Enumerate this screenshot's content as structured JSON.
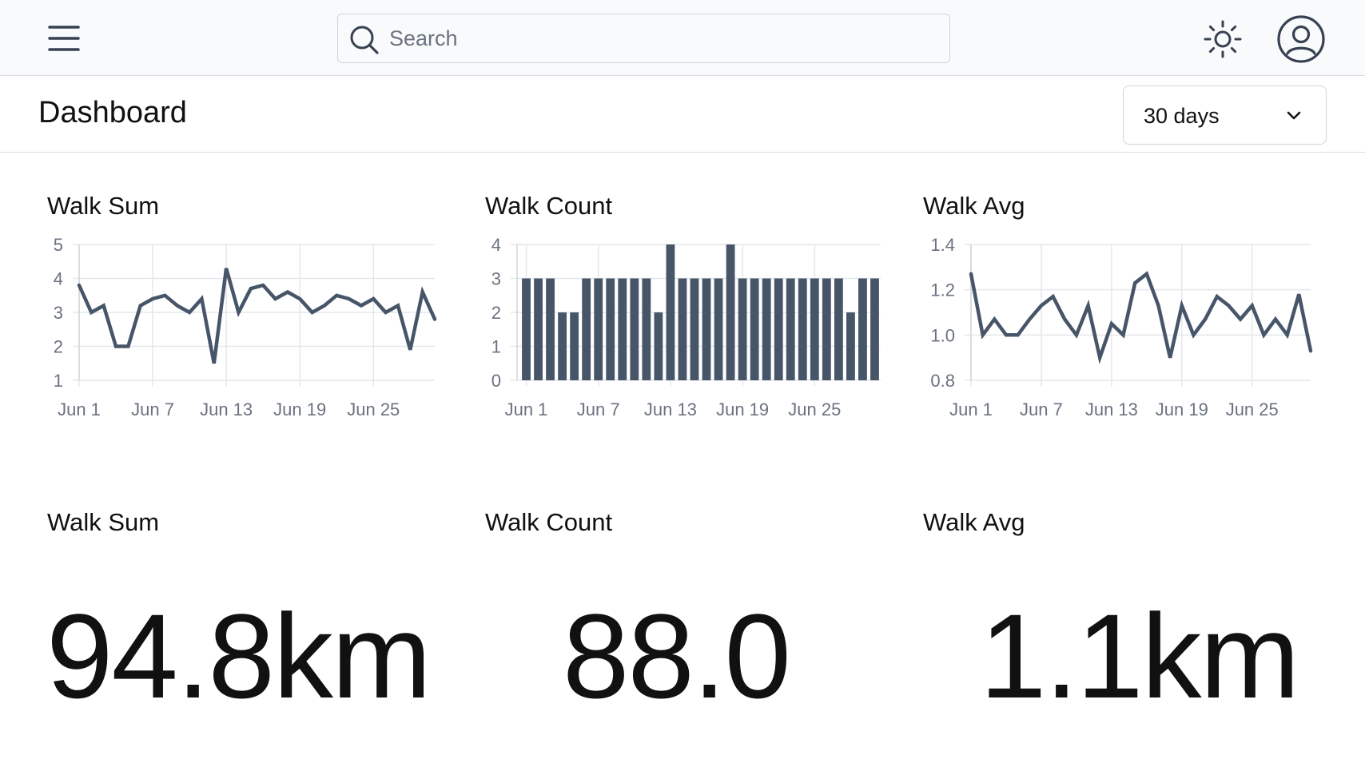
{
  "topbar": {
    "menu_icon": "hamburger-menu-icon",
    "search": {
      "placeholder": "Search",
      "value": ""
    },
    "theme_icon": "sun-icon",
    "user_icon": "user-circle-icon"
  },
  "header": {
    "title": "Dashboard",
    "range": {
      "selected": "30 days"
    }
  },
  "colors": {
    "series": "#475569",
    "grid": "#e5e7eb",
    "axis_text": "#6b7280"
  },
  "chart_data": [
    {
      "type": "line",
      "title": "Walk Sum",
      "x_labels": [
        "Jun 1",
        "Jun 2",
        "Jun 3",
        "Jun 4",
        "Jun 5",
        "Jun 6",
        "Jun 7",
        "Jun 8",
        "Jun 9",
        "Jun 10",
        "Jun 11",
        "Jun 12",
        "Jun 13",
        "Jun 14",
        "Jun 15",
        "Jun 16",
        "Jun 17",
        "Jun 18",
        "Jun 19",
        "Jun 20",
        "Jun 21",
        "Jun 22",
        "Jun 23",
        "Jun 24",
        "Jun 25",
        "Jun 26",
        "Jun 27",
        "Jun 28",
        "Jun 29",
        "Jun 30"
      ],
      "tick_labels": [
        "Jun 1",
        "Jun 7",
        "Jun 13",
        "Jun 19",
        "Jun 25"
      ],
      "values": [
        3.8,
        3.0,
        3.2,
        2.0,
        2.0,
        3.2,
        3.4,
        3.5,
        3.2,
        3.0,
        3.4,
        1.5,
        4.3,
        3.0,
        3.7,
        3.8,
        3.4,
        3.6,
        3.4,
        3.0,
        3.2,
        3.5,
        3.4,
        3.2,
        3.4,
        3.0,
        3.2,
        1.9,
        3.6,
        2.8
      ],
      "y_ticks": [
        1,
        2,
        3,
        4,
        5
      ],
      "ylim": [
        1,
        5
      ]
    },
    {
      "type": "bar",
      "title": "Walk Count",
      "x_labels": [
        "Jun 1",
        "Jun 2",
        "Jun 3",
        "Jun 4",
        "Jun 5",
        "Jun 6",
        "Jun 7",
        "Jun 8",
        "Jun 9",
        "Jun 10",
        "Jun 11",
        "Jun 12",
        "Jun 13",
        "Jun 14",
        "Jun 15",
        "Jun 16",
        "Jun 17",
        "Jun 18",
        "Jun 19",
        "Jun 20",
        "Jun 21",
        "Jun 22",
        "Jun 23",
        "Jun 24",
        "Jun 25",
        "Jun 26",
        "Jun 27",
        "Jun 28",
        "Jun 29",
        "Jun 30"
      ],
      "tick_labels": [
        "Jun 1",
        "Jun 7",
        "Jun 13",
        "Jun 19",
        "Jun 25"
      ],
      "values": [
        3,
        3,
        3,
        2,
        2,
        3,
        3,
        3,
        3,
        3,
        3,
        2,
        4,
        3,
        3,
        3,
        3,
        4,
        3,
        3,
        3,
        3,
        3,
        3,
        3,
        3,
        3,
        2,
        3,
        3
      ],
      "y_ticks": [
        0,
        1,
        2,
        3,
        4
      ],
      "ylim": [
        0,
        4
      ]
    },
    {
      "type": "line",
      "title": "Walk Avg",
      "x_labels": [
        "Jun 1",
        "Jun 2",
        "Jun 3",
        "Jun 4",
        "Jun 5",
        "Jun 6",
        "Jun 7",
        "Jun 8",
        "Jun 9",
        "Jun 10",
        "Jun 11",
        "Jun 12",
        "Jun 13",
        "Jun 14",
        "Jun 15",
        "Jun 16",
        "Jun 17",
        "Jun 18",
        "Jun 19",
        "Jun 20",
        "Jun 21",
        "Jun 22",
        "Jun 23",
        "Jun 24",
        "Jun 25",
        "Jun 26",
        "Jun 27",
        "Jun 28",
        "Jun 29",
        "Jun 30"
      ],
      "tick_labels": [
        "Jun 1",
        "Jun 7",
        "Jun 13",
        "Jun 19",
        "Jun 25"
      ],
      "tick_decimals": 1,
      "values": [
        1.27,
        1.0,
        1.07,
        1.0,
        1.0,
        1.07,
        1.13,
        1.17,
        1.07,
        1.0,
        1.13,
        0.9,
        1.05,
        1.0,
        1.23,
        1.27,
        1.13,
        0.9,
        1.13,
        1.0,
        1.07,
        1.17,
        1.13,
        1.07,
        1.13,
        1.0,
        1.07,
        1.0,
        1.18,
        0.93
      ],
      "y_ticks": [
        0.8,
        1.0,
        1.2,
        1.4
      ],
      "ylim": [
        0.8,
        1.4
      ]
    }
  ],
  "stats": [
    {
      "title": "Walk Sum",
      "value": "94.8km"
    },
    {
      "title": "Walk Count",
      "value": "88.0"
    },
    {
      "title": "Walk Avg",
      "value": "1.1km"
    }
  ]
}
